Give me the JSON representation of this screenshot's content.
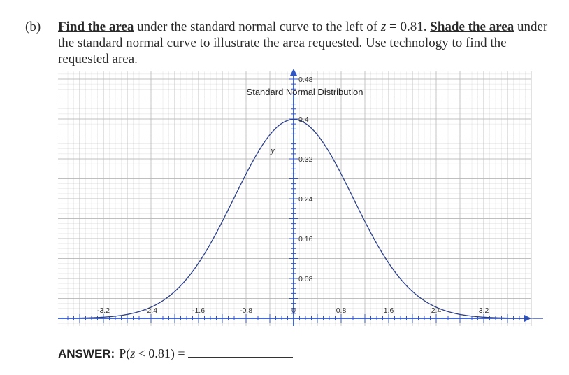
{
  "question": {
    "label": "(b)",
    "part1": "Find the area",
    "part2": " under the standard normal curve to the left of ",
    "zvar": "z",
    "part3": " = 0.81.  ",
    "part4": "Shade the area",
    "part5": " under the standard normal curve to illustrate the area requested.  Use technology to find the requested area."
  },
  "chart_data": {
    "type": "line",
    "title": "Standard Normal Distribution",
    "ylabel": "y",
    "xlabel": "",
    "xlim": [
      -3.6,
      4.2
    ],
    "ylim": [
      0,
      0.5
    ],
    "x_ticks": [
      "-3.2",
      "-2.4",
      "-1.6",
      "-0.8",
      "0",
      "0.8",
      "1.6",
      "2.4",
      "3.2"
    ],
    "y_ticks": [
      "0.08",
      "0.16",
      "0.24",
      "0.32",
      "0.4",
      "0.48"
    ],
    "grid": true,
    "series": [
      {
        "x": [
          -3.6,
          -3.2,
          -2.8,
          -2.4,
          -2.0,
          -1.6,
          -1.2,
          -0.8,
          -0.4,
          0.0,
          0.4,
          0.8,
          1.2,
          1.6,
          2.0,
          2.4,
          2.8,
          3.2,
          3.6,
          4.0
        ],
        "y": [
          0.0006,
          0.0024,
          0.0079,
          0.0224,
          0.054,
          0.1109,
          0.1942,
          0.2897,
          0.3683,
          0.3989,
          0.3683,
          0.2897,
          0.1942,
          0.1109,
          0.054,
          0.0224,
          0.0079,
          0.0024,
          0.0006,
          0.0001
        ]
      }
    ],
    "colors": {
      "curve": "#2b3f86",
      "axis": "#2f55c4",
      "grid": "#b9b9b9"
    }
  },
  "answer": {
    "label": "ANSWER:",
    "prefix": "P(",
    "var": "z",
    "suffix": " < 0.81) ="
  }
}
